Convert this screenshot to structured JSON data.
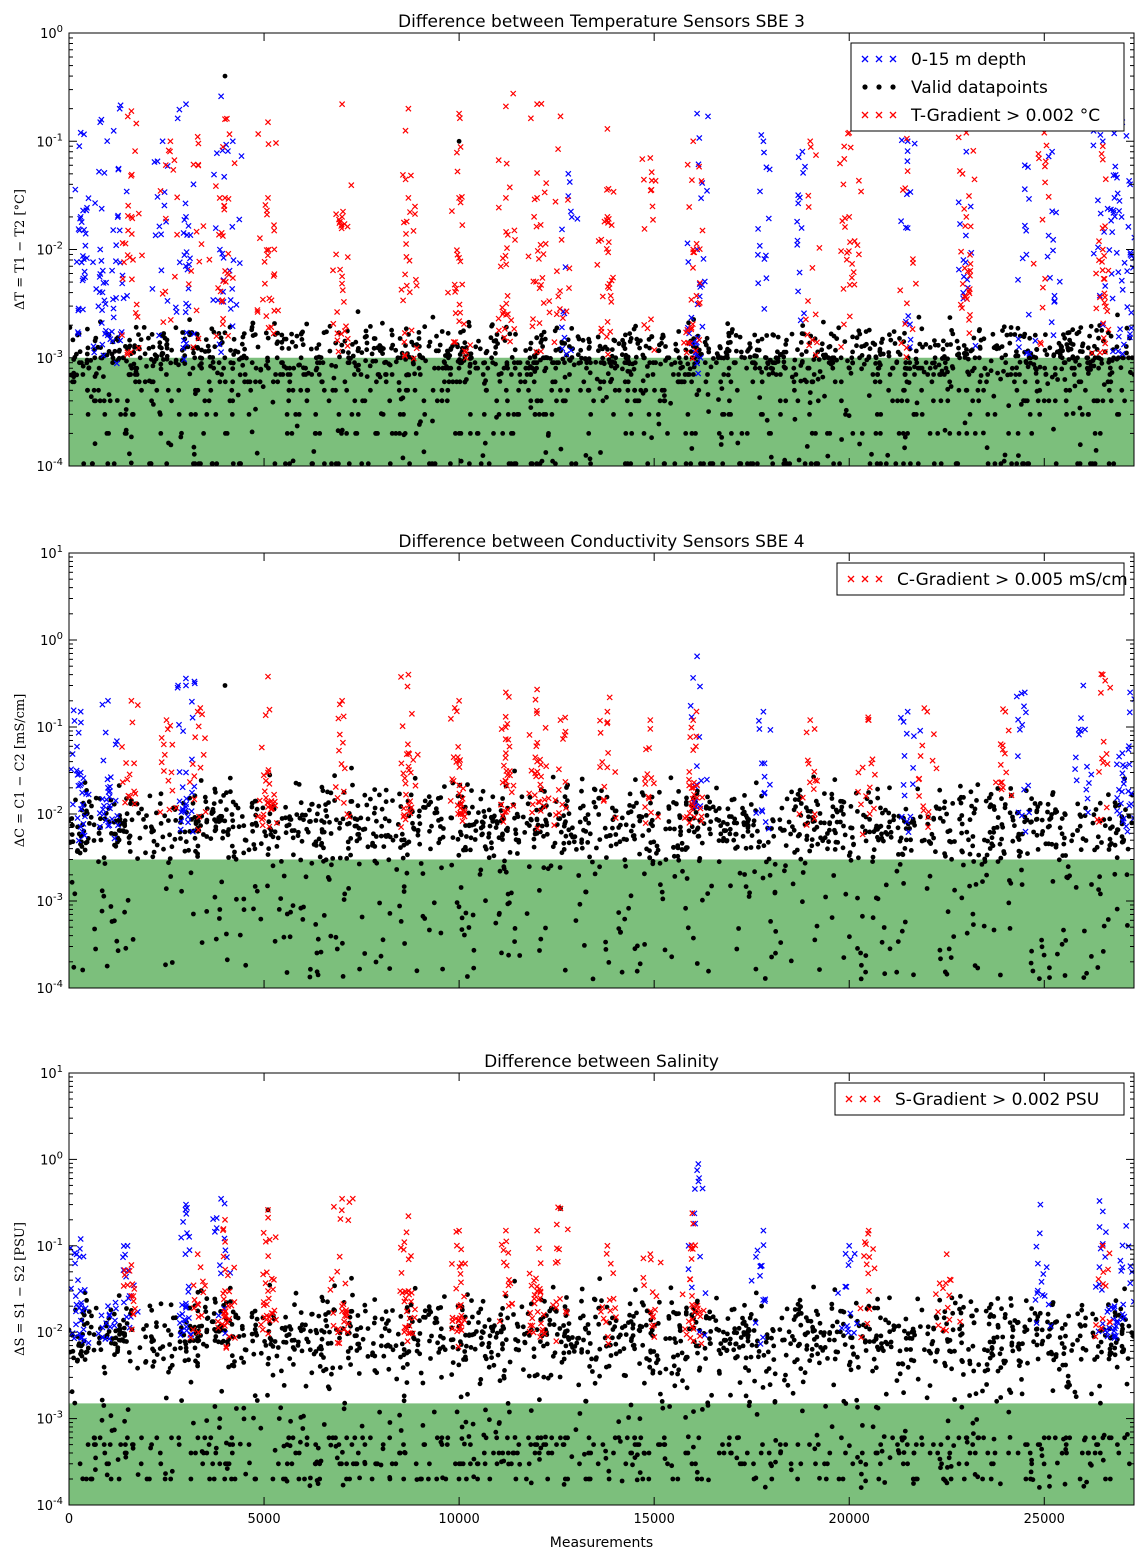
{
  "colors": {
    "surface": "#0000ff",
    "valid": "#000000",
    "gradient": "#ff0000",
    "band": "#7cbf7c"
  },
  "chart_data": [
    {
      "type": "scatter",
      "title": "Difference between Temperature Sensors SBE 3",
      "xlabel": "",
      "ylabel": "ΔT = T1 − T2 [°C]",
      "yscale": "log",
      "xlim": [
        0,
        27300
      ],
      "ylim": [
        0.0001,
        1
      ],
      "ytick_exponents": [
        "0",
        "-1",
        "-2",
        "-3",
        "-4"
      ],
      "show_xticklabels": false,
      "band": [
        0.0001,
        0.001
      ],
      "legend_position": "top-right",
      "legend": [
        "0-15 m depth",
        "Valid datapoints",
        "T-Gradient > 0.002 °C"
      ],
      "series": [
        {
          "name": "0-15 m depth",
          "marker": "x",
          "color": "#0000ff",
          "peaks": [
            [
              300,
              0.12
            ],
            [
              800,
              0.15
            ],
            [
              1300,
              0.2
            ],
            [
              2400,
              0.1
            ],
            [
              3000,
              0.22
            ],
            [
              3900,
              0.26
            ],
            [
              4200,
              0.1
            ],
            [
              12800,
              0.05
            ],
            [
              16100,
              0.18
            ],
            [
              17800,
              0.1
            ],
            [
              18800,
              0.08
            ],
            [
              21500,
              0.1
            ],
            [
              23000,
              0.08
            ],
            [
              24500,
              0.06
            ],
            [
              25200,
              0.08
            ],
            [
              26500,
              0.1
            ],
            [
              27000,
              0.15
            ]
          ],
          "mid": [
            [
              300,
              0.02
            ],
            [
              800,
              0.01
            ],
            [
              1300,
              0.015
            ],
            [
              3000,
              0.02
            ],
            [
              16100,
              0.01
            ],
            [
              26800,
              0.03
            ],
            [
              27200,
              0.04
            ]
          ]
        },
        {
          "name": "Valid datapoints",
          "marker": "o",
          "color": "#000000",
          "quantized_levels": [
            0.0002,
            0.0003,
            0.0004,
            0.0005,
            0.0006,
            0.0007,
            0.0008,
            0.0009,
            0.001
          ],
          "mean_level": 0.0012,
          "peaks": [
            [
              4000,
              0.4
            ],
            [
              10000,
              0.1
            ]
          ]
        },
        {
          "name": "T-Gradient > 0.002 °C",
          "marker": "x",
          "color": "#ff0000",
          "peaks": [
            [
              1600,
              0.19
            ],
            [
              2600,
              0.1
            ],
            [
              3300,
              0.11
            ],
            [
              4000,
              0.16
            ],
            [
              5100,
              0.15
            ],
            [
              7000,
              0.22
            ],
            [
              8700,
              0.2
            ],
            [
              10000,
              0.18
            ],
            [
              11200,
              0.21
            ],
            [
              12000,
              0.22
            ],
            [
              12600,
              0.17
            ],
            [
              13800,
              0.13
            ],
            [
              14900,
              0.07
            ],
            [
              16000,
              0.1
            ],
            [
              19000,
              0.1
            ],
            [
              20000,
              0.12
            ],
            [
              21500,
              0.13
            ],
            [
              23000,
              0.12
            ],
            [
              25000,
              0.12
            ],
            [
              26500,
              0.09
            ]
          ],
          "mid": [
            [
              1600,
              0.02
            ],
            [
              4000,
              0.03
            ],
            [
              5100,
              0.03
            ],
            [
              7000,
              0.02
            ],
            [
              8700,
              0.03
            ],
            [
              10000,
              0.03
            ],
            [
              11200,
              0.03
            ],
            [
              12000,
              0.03
            ],
            [
              13800,
              0.02
            ],
            [
              16000,
              0.01
            ],
            [
              20000,
              0.02
            ],
            [
              23000,
              0.02
            ],
            [
              26500,
              0.01
            ]
          ]
        }
      ]
    },
    {
      "type": "scatter",
      "title": "Difference between Conductivity Sensors SBE 4",
      "xlabel": "",
      "ylabel": "ΔC = C1 − C2 [mS/cm]",
      "yscale": "log",
      "xlim": [
        0,
        27300
      ],
      "ylim": [
        0.0001,
        10
      ],
      "ytick_exponents": [
        "1",
        "0",
        "-1",
        "-2",
        "-3",
        "-4"
      ],
      "show_xticklabels": false,
      "band": [
        0.0001,
        0.003
      ],
      "legend_position": "top-right",
      "legend": [
        "C-Gradient > 0.005 mS/cm"
      ],
      "series": [
        {
          "name": "0-15 m depth",
          "marker": "x",
          "color": "#0000ff",
          "peaks": [
            [
              300,
              0.15
            ],
            [
              1000,
              0.2
            ],
            [
              3000,
              0.3
            ],
            [
              16100,
              0.65
            ],
            [
              17800,
              0.15
            ],
            [
              21500,
              0.15
            ],
            [
              24500,
              0.25
            ],
            [
              26000,
              0.3
            ],
            [
              27200,
              0.25
            ]
          ],
          "mid": [
            [
              300,
              0.03
            ],
            [
              1000,
              0.02
            ],
            [
              3000,
              0.03
            ],
            [
              27000,
              0.05
            ]
          ]
        },
        {
          "name": "Valid datapoints",
          "marker": "o",
          "color": "#000000",
          "mean_level": 0.008,
          "peaks": [
            [
              4000,
              0.3
            ]
          ]
        },
        {
          "name": "C-Gradient > 0.005 mS/cm",
          "marker": "x",
          "color": "#ff0000",
          "peaks": [
            [
              1600,
              0.2
            ],
            [
              2500,
              0.12
            ],
            [
              3300,
              0.15
            ],
            [
              5100,
              0.38
            ],
            [
              7000,
              0.2
            ],
            [
              8700,
              0.4
            ],
            [
              10000,
              0.2
            ],
            [
              11200,
              0.25
            ],
            [
              12000,
              0.27
            ],
            [
              12600,
              0.12
            ],
            [
              13800,
              0.15
            ],
            [
              14900,
              0.12
            ],
            [
              16000,
              0.12
            ],
            [
              19000,
              0.12
            ],
            [
              20500,
              0.12
            ],
            [
              22000,
              0.15
            ],
            [
              24000,
              0.15
            ],
            [
              26500,
              0.4
            ]
          ],
          "mid": [
            [
              5100,
              0.03
            ],
            [
              8700,
              0.05
            ],
            [
              10000,
              0.04
            ],
            [
              11200,
              0.05
            ],
            [
              12000,
              0.04
            ],
            [
              16000,
              0.02
            ]
          ]
        }
      ]
    },
    {
      "type": "scatter",
      "title": "Difference between Salinity",
      "xlabel": "Measurements",
      "ylabel": "ΔS = S1 − S2 [PSU]",
      "yscale": "log",
      "xlim": [
        0,
        27300
      ],
      "ylim": [
        0.0001,
        10
      ],
      "ytick_exponents": [
        "1",
        "0",
        "-1",
        "-2",
        "-3",
        "-4"
      ],
      "xticks": [
        0,
        5000,
        10000,
        15000,
        20000,
        25000
      ],
      "show_xticklabels": true,
      "band": [
        0.0001,
        0.0015
      ],
      "legend_position": "top-right",
      "legend": [
        "S-Gradient > 0.002 PSU"
      ],
      "series": [
        {
          "name": "0-15 m depth",
          "marker": "x",
          "color": "#0000ff",
          "peaks": [
            [
              300,
              0.12
            ],
            [
              1500,
              0.1
            ],
            [
              3000,
              0.3
            ],
            [
              3900,
              0.35
            ],
            [
              16100,
              0.75
            ],
            [
              17800,
              0.15
            ],
            [
              20000,
              0.1
            ],
            [
              24900,
              0.3
            ],
            [
              26500,
              0.25
            ],
            [
              27100,
              0.17
            ]
          ],
          "mid": [
            [
              300,
              0.03
            ],
            [
              1000,
              0.02
            ],
            [
              3000,
              0.02
            ],
            [
              26800,
              0.02
            ]
          ]
        },
        {
          "name": "Valid datapoints",
          "marker": "o",
          "color": "#000000",
          "quantized_levels": [
            0.0002,
            0.0003,
            0.0004,
            0.0005,
            0.0006
          ],
          "mean_level": 0.01,
          "peaks": [
            [
              5100,
              0.26
            ],
            [
              12600,
              0.27
            ]
          ]
        },
        {
          "name": "S-Gradient > 0.002 PSU",
          "marker": "x",
          "color": "#ff0000",
          "peaks": [
            [
              1600,
              0.06
            ],
            [
              3300,
              0.08
            ],
            [
              4000,
              0.2
            ],
            [
              5100,
              0.26
            ],
            [
              7000,
              0.35
            ],
            [
              8700,
              0.22
            ],
            [
              10000,
              0.15
            ],
            [
              11200,
              0.15
            ],
            [
              12000,
              0.15
            ],
            [
              12600,
              0.27
            ],
            [
              13800,
              0.1
            ],
            [
              14900,
              0.08
            ],
            [
              16000,
              0.18
            ],
            [
              20500,
              0.15
            ],
            [
              22500,
              0.08
            ],
            [
              26500,
              0.1
            ]
          ],
          "mid": [
            [
              4000,
              0.03
            ],
            [
              5100,
              0.03
            ],
            [
              7000,
              0.02
            ],
            [
              8700,
              0.03
            ],
            [
              10000,
              0.02
            ],
            [
              12000,
              0.03
            ],
            [
              16000,
              0.02
            ]
          ]
        }
      ]
    }
  ]
}
